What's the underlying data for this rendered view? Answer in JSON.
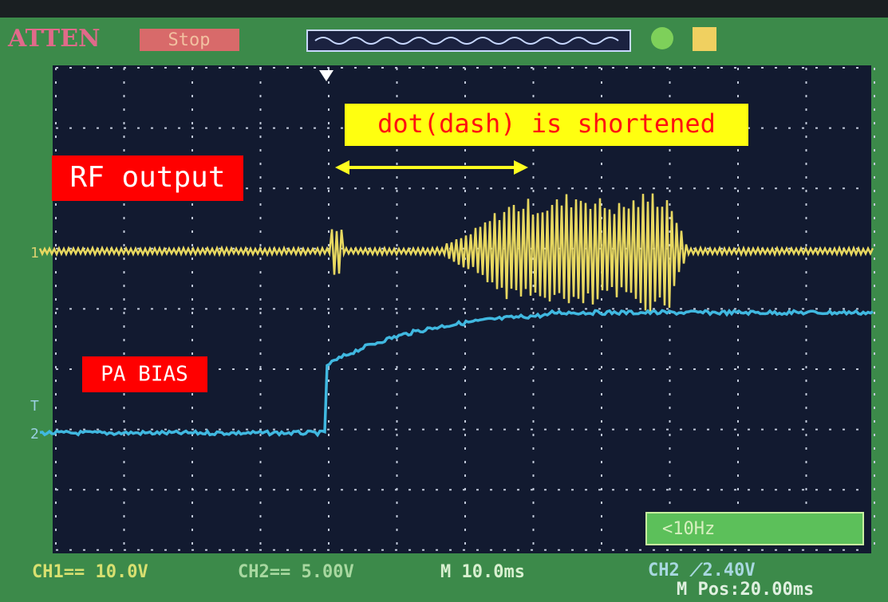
{
  "header": {
    "mode": "ATTEN",
    "state": "Stop"
  },
  "markers": {
    "ch1": "1",
    "trigger": "T",
    "ch2": "2"
  },
  "annotations": {
    "note": "dot(dash) is shortened",
    "rf": "RF output",
    "bias": "PA BIAS"
  },
  "status": {
    "ch1": "CH1== 10.0V",
    "ch2": "CH2== 5.00V",
    "time": "M 10.0ms",
    "trigger": "CH2 ⟋2.40V",
    "pos": "M Pos:20.00ms",
    "freq": "<10Hz"
  }
}
